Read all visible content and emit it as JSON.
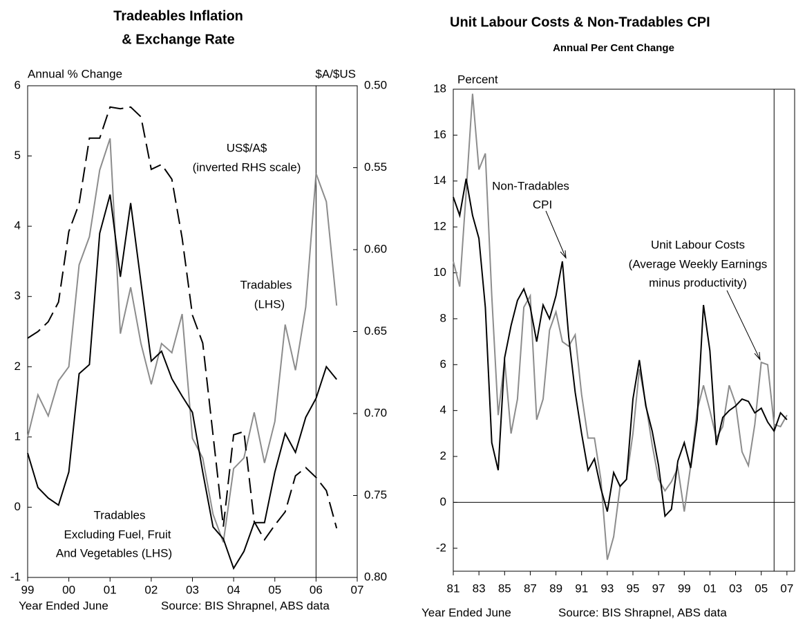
{
  "chart_data": [
    {
      "type": "line",
      "title": [
        "Tradeables Inflation",
        "& Exchange Rate"
      ],
      "y_label": "Annual % Change",
      "y2_label": "$A/$US",
      "x_label": "Year Ended June",
      "source": "Source: BIS Shrapnel, ABS data",
      "annotations": [
        "US$/A$",
        "(inverted RHS scale)",
        "Tradables",
        "(LHS)",
        "Tradables",
        "Excluding Fuel, Fruit",
        "And Vegetables (LHS)"
      ],
      "x": [
        1999,
        1999.25,
        1999.5,
        1999.75,
        2000,
        2000.25,
        2000.5,
        2000.75,
        2001,
        2001.25,
        2001.5,
        2001.75,
        2002,
        2002.25,
        2002.5,
        2002.75,
        2003,
        2003.25,
        2003.5,
        2003.75,
        2004,
        2004.25,
        2004.5,
        2004.75,
        2005,
        2005.25,
        2005.5,
        2005.75,
        2006,
        2006.25,
        2006.5
      ],
      "series": [
        {
          "color": "#8c8c8c",
          "values": [
            1.0,
            1.6,
            1.3,
            1.8,
            2.0,
            3.45,
            3.85,
            4.8,
            5.25,
            2.47,
            3.13,
            2.33,
            1.75,
            2.33,
            2.2,
            2.75,
            0.98,
            0.7,
            -0.1,
            -0.5,
            0.55,
            0.7,
            1.35,
            0.63,
            1.22,
            2.6,
            1.95,
            2.85,
            4.75,
            4.35,
            2.87
          ]
        },
        {
          "color": "#000000",
          "values": [
            0.77,
            0.28,
            0.13,
            0.03,
            0.5,
            1.9,
            2.03,
            3.9,
            4.45,
            3.28,
            4.33,
            3.2,
            2.08,
            2.22,
            1.83,
            1.58,
            1.35,
            0.5,
            -0.28,
            -0.45,
            -0.87,
            -0.63,
            -0.22,
            -0.22,
            0.5,
            1.05,
            0.78,
            1.28,
            1.55,
            2.0,
            1.82
          ]
        },
        {
          "color": "#000000",
          "dashed": true,
          "axis": "y2",
          "values": [
            0.654,
            0.65,
            0.644,
            0.632,
            0.589,
            0.572,
            0.532,
            0.532,
            0.513,
            0.514,
            0.513,
            0.519,
            0.551,
            0.548,
            0.557,
            0.593,
            0.64,
            0.657,
            0.713,
            0.769,
            0.713,
            0.711,
            0.766,
            0.777,
            0.768,
            0.76,
            0.738,
            0.733,
            0.739,
            0.747,
            0.77
          ]
        }
      ],
      "xlim": [
        1999,
        2007
      ],
      "xticks": [
        {
          "value": 1999,
          "label": "99"
        },
        {
          "value": 2000,
          "label": "00"
        },
        {
          "value": 2001,
          "label": "01"
        },
        {
          "value": 2002,
          "label": "02"
        },
        {
          "value": 2003,
          "label": "03"
        },
        {
          "value": 2004,
          "label": "04"
        },
        {
          "value": 2005,
          "label": "05"
        },
        {
          "value": 2006,
          "label": "06"
        },
        {
          "value": 2007,
          "label": "07"
        }
      ],
      "ylim": [
        -1,
        6
      ],
      "yticks": [
        -1,
        0,
        1,
        2,
        3,
        4,
        5,
        6
      ],
      "y2lim": [
        0.8,
        0.5
      ],
      "y2_inverted": true,
      "y2ticks": [
        {
          "value": 0.5,
          "label": "0.50"
        },
        0.55,
        {
          "value": 0.6,
          "label": "0.60"
        },
        0.65,
        {
          "value": 0.7,
          "label": "0.70"
        },
        0.75,
        {
          "value": 0.8,
          "label": "0.80"
        }
      ],
      "vline": 2006
    },
    {
      "type": "line",
      "title": [
        "Unit Labour Costs & Non-Tradables CPI"
      ],
      "subtitle": "Annual Per Cent Change",
      "y_label": "Percent",
      "x_label": "Year Ended June",
      "source": "Source: BIS Shrapnel, ABS data",
      "annotations": [
        "Non-Tradables",
        "CPI",
        "Unit Labour Costs",
        "(Average Weekly Earnings",
        "minus productivity)"
      ],
      "x": [
        1981,
        1981.5,
        1982,
        1982.5,
        1983,
        1983.5,
        1984,
        1984.5,
        1985,
        1985.5,
        1986,
        1986.5,
        1987,
        1987.5,
        1988,
        1988.5,
        1989,
        1989.5,
        1990,
        1990.5,
        1991,
        1991.5,
        1992,
        1992.5,
        1993,
        1993.5,
        1994,
        1994.5,
        1995,
        1995.5,
        1996,
        1996.5,
        1997,
        1997.5,
        1998,
        1998.5,
        1999,
        1999.5,
        2000,
        2000.5,
        2001,
        2001.5,
        2002,
        2002.5,
        2003,
        2003.5,
        2004,
        2004.5,
        2005,
        2005.5,
        2006,
        2006.5,
        2007
      ],
      "series": [
        {
          "color": "#8c8c8c",
          "values": [
            10.5,
            9.4,
            13.5,
            17.8,
            14.5,
            15.2,
            9.0,
            3.8,
            6.2,
            3.0,
            4.5,
            8.5,
            9.0,
            3.6,
            4.5,
            7.5,
            8.3,
            7.0,
            6.8,
            7.3,
            4.7,
            2.8,
            2.8,
            1.0,
            -2.5,
            -1.5,
            0.7,
            1.0,
            3.0,
            5.8,
            4.3,
            2.5,
            1.0,
            0.5,
            0.9,
            1.5,
            -0.4,
            1.6,
            4.0,
            5.1,
            4.0,
            2.8,
            3.3,
            5.1,
            4.3,
            2.2,
            1.6,
            3.4,
            6.1,
            6.0,
            3.4,
            3.3,
            3.8
          ]
        },
        {
          "color": "#000000",
          "values": [
            13.3,
            12.5,
            14.1,
            12.5,
            11.5,
            8.5,
            2.6,
            1.4,
            6.3,
            7.7,
            8.8,
            9.3,
            8.5,
            7.0,
            8.6,
            8.0,
            9.0,
            10.5,
            7.2,
            4.8,
            3.0,
            1.4,
            1.9,
            0.6,
            -0.4,
            1.3,
            0.7,
            1.0,
            4.5,
            6.2,
            4.2,
            3.1,
            1.6,
            -0.6,
            -0.3,
            1.8,
            2.6,
            1.5,
            3.6,
            8.6,
            6.6,
            2.5,
            3.7,
            4.0,
            4.2,
            4.5,
            4.4,
            3.9,
            4.1,
            3.5,
            3.1,
            3.9,
            3.6
          ]
        }
      ],
      "xlim": [
        1981,
        2007.6
      ],
      "xticks": [
        {
          "value": 1981,
          "label": "81"
        },
        {
          "value": 1983,
          "label": "83"
        },
        {
          "value": 1985,
          "label": "85"
        },
        {
          "value": 1987,
          "label": "87"
        },
        {
          "value": 1989,
          "label": "89"
        },
        {
          "value": 1991,
          "label": "91"
        },
        {
          "value": 1993,
          "label": "93"
        },
        {
          "value": 1995,
          "label": "95"
        },
        {
          "value": 1997,
          "label": "97"
        },
        {
          "value": 1999,
          "label": "99"
        },
        {
          "value": 2001,
          "label": "01"
        },
        {
          "value": 2003,
          "label": "03"
        },
        {
          "value": 2005,
          "label": "05"
        },
        {
          "value": 2007,
          "label": "07"
        }
      ],
      "ylim": [
        -3,
        18
      ],
      "yticks": [
        -2,
        0,
        2,
        4,
        6,
        8,
        10,
        12,
        14,
        16,
        18
      ],
      "zero_line": true,
      "vline": 2006
    }
  ]
}
